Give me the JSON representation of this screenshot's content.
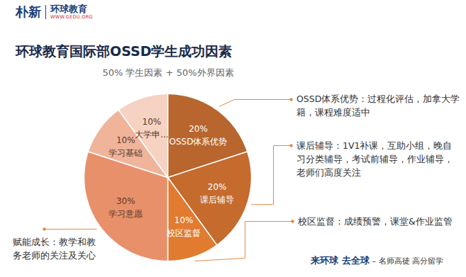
{
  "logo": {
    "brand": "朴新",
    "name": "环球教育",
    "url": "WWW.GEDU.ORG"
  },
  "chart_data": {
    "type": "pie",
    "title": "环球教育国际部OSSD学生成功因素",
    "subtitle": "50% 学生因素 + 50%外界因素",
    "categories": [
      "OSSD体系优势",
      "课后辅导",
      "校区监督",
      "学习意愿",
      "学习基础",
      "大学申..."
    ],
    "values": [
      20,
      20,
      10,
      30,
      10,
      10
    ],
    "value_labels": [
      "20%",
      "20%",
      "10%",
      "30%",
      "10%",
      "10%"
    ],
    "colors": [
      "#b8662e",
      "#c56b2d",
      "#e07b30",
      "#e8906a",
      "#f0b49b",
      "#f6d2c2"
    ],
    "data_labels": true,
    "annotations": [
      {
        "text": "OSSD体系优势：过程化评估，加拿大学籍，课程难度适中",
        "category": "OSSD体系优势"
      },
      {
        "text": "课后辅导：1V1补课，互助小组，晚自习分类辅导，考试前辅导，作业辅导，老师们高度关注",
        "category": "课后辅导"
      },
      {
        "text": "校区监督：成绩预警，课堂&作业监管",
        "category": "校区监督"
      },
      {
        "text": "赋能成长：教学和教务老师的关注及关心",
        "category": "学习意愿"
      }
    ]
  },
  "footer": {
    "slogan": "来环球 去全球",
    "tagline": "– 名师高徒 高分留学"
  }
}
